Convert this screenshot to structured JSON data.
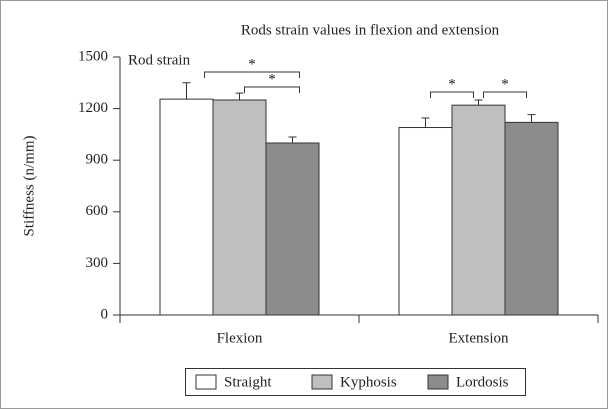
{
  "chart_data": {
    "type": "bar",
    "title": "Rods strain values in flexion and extension",
    "annotation": "Rod strain",
    "significance_labels": [
      "*",
      "*",
      "*",
      "*"
    ],
    "y_label": "Stiffness (n/mm)",
    "categories": [
      "Flexion",
      "Extension"
    ],
    "series": [
      {
        "name": "Straight",
        "color": "#ffffff",
        "values": [
          1255,
          1090
        ],
        "errors": [
          95,
          55
        ]
      },
      {
        "name": "Kyphosis",
        "color": "#bfbfbf",
        "values": [
          1250,
          1220
        ],
        "errors": [
          40,
          30
        ]
      },
      {
        "name": "Lordosis",
        "color": "#8c8c8c",
        "values": [
          1000,
          1120
        ],
        "errors": [
          35,
          45
        ]
      }
    ],
    "ylim": [
      0,
      1500
    ],
    "yticks": [
      0,
      300,
      600,
      900,
      1200,
      1500
    ],
    "legend": "bottom"
  }
}
